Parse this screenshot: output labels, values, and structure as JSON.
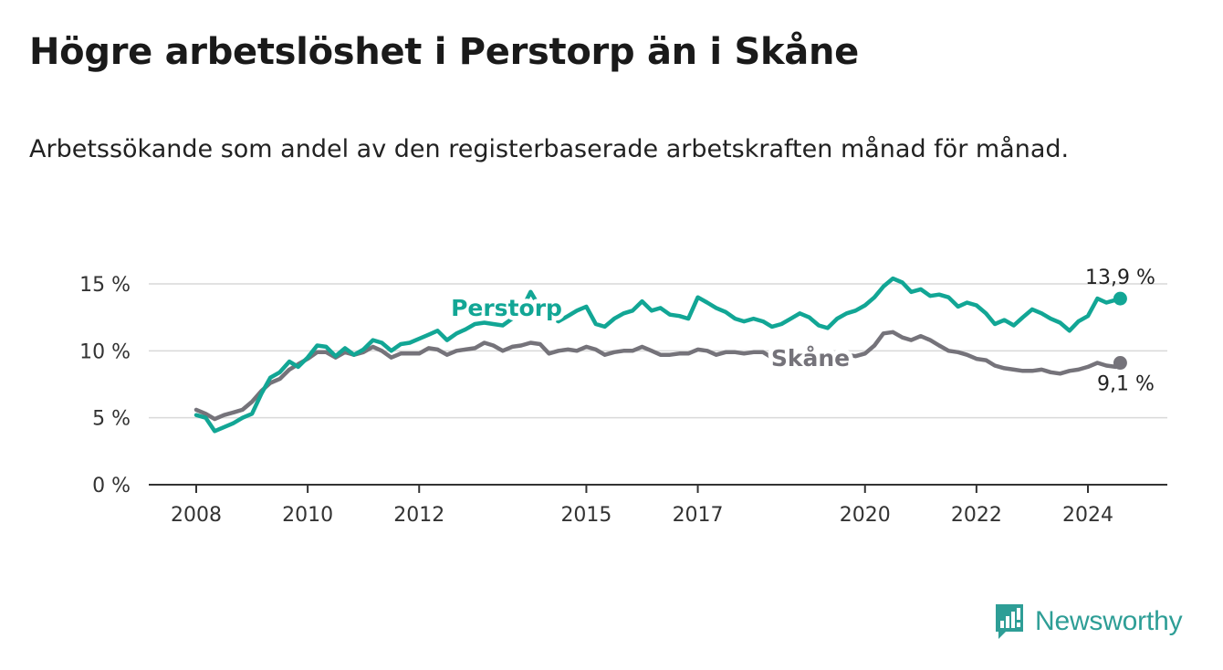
{
  "title": "Högre arbetslöshet i Perstorp än i Skåne",
  "subtitle": "Arbetssökande som andel av den registerbaserade arbetskraften månad för månad.",
  "brand": "Newsworthy",
  "colors": {
    "perstorp": "#12a695",
    "skane": "#75737a",
    "grid": "#d9d9d9",
    "axis": "#333333",
    "brand": "#2e9e96"
  },
  "chart_data": {
    "type": "line",
    "ylim": [
      0,
      15
    ],
    "y_ticks": [
      0,
      5,
      10,
      15
    ],
    "y_tick_labels": [
      "0 %",
      "5 %",
      "10 %",
      "15 %"
    ],
    "x_ticks": [
      2008,
      2010,
      2012,
      2015,
      2017,
      2020,
      2022,
      2024
    ],
    "x_tick_labels": [
      "2008",
      "2010",
      "2012",
      "2015",
      "2017",
      "2020",
      "2022",
      "2024"
    ],
    "series": [
      {
        "name": "Perstorp",
        "label": "Perstorp",
        "end_label": "13,9 %",
        "points": [
          [
            2008.0,
            5.2
          ],
          [
            2008.17,
            5.0
          ],
          [
            2008.33,
            4.0
          ],
          [
            2008.5,
            4.3
          ],
          [
            2008.67,
            4.6
          ],
          [
            2008.83,
            5.0
          ],
          [
            2009.0,
            5.3
          ],
          [
            2009.17,
            6.8
          ],
          [
            2009.33,
            8.0
          ],
          [
            2009.5,
            8.4
          ],
          [
            2009.67,
            9.2
          ],
          [
            2009.83,
            8.8
          ],
          [
            2010.0,
            9.5
          ],
          [
            2010.17,
            10.4
          ],
          [
            2010.33,
            10.3
          ],
          [
            2010.5,
            9.6
          ],
          [
            2010.67,
            10.2
          ],
          [
            2010.83,
            9.7
          ],
          [
            2011.0,
            10.1
          ],
          [
            2011.17,
            10.8
          ],
          [
            2011.33,
            10.6
          ],
          [
            2011.5,
            10.0
          ],
          [
            2011.67,
            10.5
          ],
          [
            2011.83,
            10.6
          ],
          [
            2012.0,
            10.9
          ],
          [
            2012.17,
            11.2
          ],
          [
            2012.33,
            11.5
          ],
          [
            2012.5,
            10.8
          ],
          [
            2012.67,
            11.3
          ],
          [
            2012.83,
            11.6
          ],
          [
            2013.0,
            12.0
          ],
          [
            2013.17,
            12.1
          ],
          [
            2013.33,
            12.0
          ],
          [
            2013.5,
            11.9
          ],
          [
            2013.67,
            12.4
          ],
          [
            2013.83,
            13.0
          ],
          [
            2014.0,
            14.4
          ],
          [
            2014.17,
            13.2
          ],
          [
            2014.33,
            12.6
          ],
          [
            2014.5,
            12.2
          ],
          [
            2014.67,
            12.6
          ],
          [
            2014.83,
            13.0
          ],
          [
            2015.0,
            13.3
          ],
          [
            2015.17,
            12.0
          ],
          [
            2015.33,
            11.8
          ],
          [
            2015.5,
            12.4
          ],
          [
            2015.67,
            12.8
          ],
          [
            2015.83,
            13.0
          ],
          [
            2016.0,
            13.7
          ],
          [
            2016.17,
            13.0
          ],
          [
            2016.33,
            13.2
          ],
          [
            2016.5,
            12.7
          ],
          [
            2016.67,
            12.6
          ],
          [
            2016.83,
            12.4
          ],
          [
            2017.0,
            14.0
          ],
          [
            2017.17,
            13.6
          ],
          [
            2017.33,
            13.2
          ],
          [
            2017.5,
            12.9
          ],
          [
            2017.67,
            12.4
          ],
          [
            2017.83,
            12.2
          ],
          [
            2018.0,
            12.4
          ],
          [
            2018.17,
            12.2
          ],
          [
            2018.33,
            11.8
          ],
          [
            2018.5,
            12.0
          ],
          [
            2018.67,
            12.4
          ],
          [
            2018.83,
            12.8
          ],
          [
            2019.0,
            12.5
          ],
          [
            2019.17,
            11.9
          ],
          [
            2019.33,
            11.7
          ],
          [
            2019.5,
            12.4
          ],
          [
            2019.67,
            12.8
          ],
          [
            2019.83,
            13.0
          ],
          [
            2020.0,
            13.4
          ],
          [
            2020.17,
            14.0
          ],
          [
            2020.33,
            14.8
          ],
          [
            2020.5,
            15.4
          ],
          [
            2020.67,
            15.1
          ],
          [
            2020.83,
            14.4
          ],
          [
            2021.0,
            14.6
          ],
          [
            2021.17,
            14.1
          ],
          [
            2021.33,
            14.2
          ],
          [
            2021.5,
            14.0
          ],
          [
            2021.67,
            13.3
          ],
          [
            2021.83,
            13.6
          ],
          [
            2022.0,
            13.4
          ],
          [
            2022.17,
            12.8
          ],
          [
            2022.33,
            12.0
          ],
          [
            2022.5,
            12.3
          ],
          [
            2022.67,
            11.9
          ],
          [
            2022.83,
            12.5
          ],
          [
            2023.0,
            13.1
          ],
          [
            2023.17,
            12.8
          ],
          [
            2023.33,
            12.4
          ],
          [
            2023.5,
            12.1
          ],
          [
            2023.67,
            11.5
          ],
          [
            2023.83,
            12.2
          ],
          [
            2024.0,
            12.6
          ],
          [
            2024.17,
            13.9
          ],
          [
            2024.33,
            13.6
          ],
          [
            2024.5,
            13.8
          ],
          [
            2024.58,
            13.9
          ]
        ]
      },
      {
        "name": "Skåne",
        "label": "Skåne",
        "end_label": "9,1 %",
        "points": [
          [
            2008.0,
            5.6
          ],
          [
            2008.17,
            5.3
          ],
          [
            2008.33,
            4.9
          ],
          [
            2008.5,
            5.2
          ],
          [
            2008.67,
            5.4
          ],
          [
            2008.83,
            5.6
          ],
          [
            2009.0,
            6.2
          ],
          [
            2009.17,
            7.0
          ],
          [
            2009.33,
            7.6
          ],
          [
            2009.5,
            7.9
          ],
          [
            2009.67,
            8.6
          ],
          [
            2009.83,
            9.0
          ],
          [
            2010.0,
            9.4
          ],
          [
            2010.17,
            9.9
          ],
          [
            2010.33,
            9.9
          ],
          [
            2010.5,
            9.5
          ],
          [
            2010.67,
            9.9
          ],
          [
            2010.83,
            9.7
          ],
          [
            2011.0,
            9.9
          ],
          [
            2011.17,
            10.3
          ],
          [
            2011.33,
            10.0
          ],
          [
            2011.5,
            9.5
          ],
          [
            2011.67,
            9.8
          ],
          [
            2011.83,
            9.8
          ],
          [
            2012.0,
            9.8
          ],
          [
            2012.17,
            10.2
          ],
          [
            2012.33,
            10.1
          ],
          [
            2012.5,
            9.7
          ],
          [
            2012.67,
            10.0
          ],
          [
            2012.83,
            10.1
          ],
          [
            2013.0,
            10.2
          ],
          [
            2013.17,
            10.6
          ],
          [
            2013.33,
            10.4
          ],
          [
            2013.5,
            10.0
          ],
          [
            2013.67,
            10.3
          ],
          [
            2013.83,
            10.4
          ],
          [
            2014.0,
            10.6
          ],
          [
            2014.17,
            10.5
          ],
          [
            2014.33,
            9.8
          ],
          [
            2014.5,
            10.0
          ],
          [
            2014.67,
            10.1
          ],
          [
            2014.83,
            10.0
          ],
          [
            2015.0,
            10.3
          ],
          [
            2015.17,
            10.1
          ],
          [
            2015.33,
            9.7
          ],
          [
            2015.5,
            9.9
          ],
          [
            2015.67,
            10.0
          ],
          [
            2015.83,
            10.0
          ],
          [
            2016.0,
            10.3
          ],
          [
            2016.17,
            10.0
          ],
          [
            2016.33,
            9.7
          ],
          [
            2016.5,
            9.7
          ],
          [
            2016.67,
            9.8
          ],
          [
            2016.83,
            9.8
          ],
          [
            2017.0,
            10.1
          ],
          [
            2017.17,
            10.0
          ],
          [
            2017.33,
            9.7
          ],
          [
            2017.5,
            9.9
          ],
          [
            2017.67,
            9.9
          ],
          [
            2017.83,
            9.8
          ],
          [
            2018.0,
            9.9
          ],
          [
            2018.17,
            9.9
          ],
          [
            2018.33,
            9.5
          ],
          [
            2018.5,
            9.6
          ],
          [
            2018.67,
            9.8
          ],
          [
            2018.83,
            9.7
          ],
          [
            2019.0,
            9.8
          ],
          [
            2019.17,
            9.5
          ],
          [
            2019.33,
            9.3
          ],
          [
            2019.5,
            9.6
          ],
          [
            2019.67,
            9.7
          ],
          [
            2019.83,
            9.6
          ],
          [
            2020.0,
            9.8
          ],
          [
            2020.17,
            10.4
          ],
          [
            2020.33,
            11.3
          ],
          [
            2020.5,
            11.4
          ],
          [
            2020.67,
            11.0
          ],
          [
            2020.83,
            10.8
          ],
          [
            2021.0,
            11.1
          ],
          [
            2021.17,
            10.8
          ],
          [
            2021.33,
            10.4
          ],
          [
            2021.5,
            10.0
          ],
          [
            2021.67,
            9.9
          ],
          [
            2021.83,
            9.7
          ],
          [
            2022.0,
            9.4
          ],
          [
            2022.17,
            9.3
          ],
          [
            2022.33,
            8.9
          ],
          [
            2022.5,
            8.7
          ],
          [
            2022.67,
            8.6
          ],
          [
            2022.83,
            8.5
          ],
          [
            2023.0,
            8.5
          ],
          [
            2023.17,
            8.6
          ],
          [
            2023.33,
            8.4
          ],
          [
            2023.5,
            8.3
          ],
          [
            2023.67,
            8.5
          ],
          [
            2023.83,
            8.6
          ],
          [
            2024.0,
            8.8
          ],
          [
            2024.17,
            9.1
          ],
          [
            2024.33,
            8.9
          ],
          [
            2024.5,
            8.8
          ],
          [
            2024.58,
            9.1
          ]
        ]
      }
    ]
  }
}
